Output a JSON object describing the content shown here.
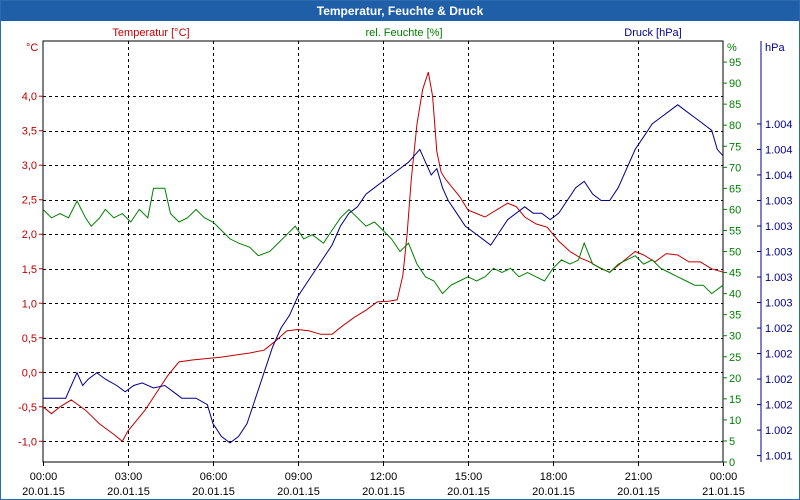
{
  "window": {
    "title": "Temperatur, Feuchte & Druck"
  },
  "colors": {
    "temp": "#c00000",
    "hum": "#008000",
    "pres": "#00008b",
    "grid": "#000000",
    "axis": "#000000"
  },
  "chart_data": {
    "type": "line",
    "title": "Temperatur, Feuchte & Druck",
    "xlabel": "",
    "x_ticks": [
      {
        "time": "00:00",
        "date": "20.01.15"
      },
      {
        "time": "03:00",
        "date": "20.01.15"
      },
      {
        "time": "06:00",
        "date": "20.01.15"
      },
      {
        "time": "09:00",
        "date": "20.01.15"
      },
      {
        "time": "12:00",
        "date": "20.01.15"
      },
      {
        "time": "15:00",
        "date": "20.01.15"
      },
      {
        "time": "18:00",
        "date": "20.01.15"
      },
      {
        "time": "21:00",
        "date": "20.01.15"
      },
      {
        "time": "00:00",
        "date": "21.01.15"
      }
    ],
    "xlim_hours": [
      0,
      24
    ],
    "axes": {
      "temp": {
        "label": "Temperatur [°C]",
        "unit": "°C",
        "ylim": [
          -1.3,
          4.8
        ],
        "ticks": [
          "-1,0",
          "-0,5",
          "0,0",
          "0,5",
          "1,0",
          "1,5",
          "2,0",
          "2,5",
          "3,0",
          "3,5",
          "4,0"
        ],
        "tick_values": [
          -1.0,
          -0.5,
          0.0,
          0.5,
          1.0,
          1.5,
          2.0,
          2.5,
          3.0,
          3.5,
          4.0
        ]
      },
      "hum": {
        "label": "rel. Feuchte [%]",
        "unit": "%",
        "ylim": [
          0,
          100
        ],
        "ticks": [
          "0",
          "5",
          "10",
          "15",
          "20",
          "25",
          "30",
          "35",
          "40",
          "45",
          "50",
          "55",
          "60",
          "65",
          "70",
          "75",
          "80",
          "85",
          "90",
          "95"
        ],
        "tick_values": [
          0,
          5,
          10,
          15,
          20,
          25,
          30,
          35,
          40,
          45,
          50,
          55,
          60,
          65,
          70,
          75,
          80,
          85,
          90,
          95
        ]
      },
      "pres": {
        "label": "Druck [hPa]",
        "unit": "hPa",
        "ylim": [
          1001.0,
          1004.3
        ],
        "ticks": [
          "1.001",
          "1.002",
          "1.002",
          "1.002",
          "1.002",
          "1.002",
          "1.003",
          "1.003",
          "1.003",
          "1.003",
          "1.003",
          "1.004",
          "1.004",
          "1.004"
        ],
        "tick_values": [
          1001.05,
          1001.25,
          1001.45,
          1001.65,
          1001.85,
          1002.05,
          1002.25,
          1002.45,
          1002.65,
          1002.85,
          1003.05,
          1003.25,
          1003.45,
          1003.65
        ]
      }
    },
    "series": [
      {
        "name": "Temperatur [°C]",
        "axis": "temp",
        "points": [
          [
            0,
            -0.5
          ],
          [
            0.3,
            -0.6
          ],
          [
            0.6,
            -0.5
          ],
          [
            1.0,
            -0.4
          ],
          [
            1.5,
            -0.55
          ],
          [
            2.0,
            -0.75
          ],
          [
            2.5,
            -0.9
          ],
          [
            2.8,
            -1.0
          ],
          [
            3.0,
            -0.85
          ],
          [
            3.3,
            -0.7
          ],
          [
            3.6,
            -0.55
          ],
          [
            4.0,
            -0.3
          ],
          [
            4.4,
            -0.05
          ],
          [
            4.8,
            0.15
          ],
          [
            5.3,
            0.18
          ],
          [
            5.8,
            0.2
          ],
          [
            6.3,
            0.22
          ],
          [
            6.8,
            0.25
          ],
          [
            7.3,
            0.28
          ],
          [
            7.8,
            0.32
          ],
          [
            8.2,
            0.45
          ],
          [
            8.6,
            0.6
          ],
          [
            9.0,
            0.62
          ],
          [
            9.4,
            0.6
          ],
          [
            9.8,
            0.55
          ],
          [
            10.2,
            0.55
          ],
          [
            10.6,
            0.68
          ],
          [
            11.0,
            0.8
          ],
          [
            11.4,
            0.9
          ],
          [
            11.8,
            1.02
          ],
          [
            12.2,
            1.03
          ],
          [
            12.5,
            1.05
          ],
          [
            12.7,
            1.4
          ],
          [
            12.85,
            2.0
          ],
          [
            13.0,
            2.8
          ],
          [
            13.2,
            3.6
          ],
          [
            13.4,
            4.1
          ],
          [
            13.6,
            4.35
          ],
          [
            13.75,
            4.0
          ],
          [
            13.9,
            3.2
          ],
          [
            14.05,
            2.9
          ],
          [
            14.2,
            2.8
          ],
          [
            14.4,
            2.7
          ],
          [
            14.7,
            2.55
          ],
          [
            15.0,
            2.35
          ],
          [
            15.3,
            2.3
          ],
          [
            15.6,
            2.25
          ],
          [
            16.0,
            2.35
          ],
          [
            16.4,
            2.45
          ],
          [
            16.7,
            2.4
          ],
          [
            17.0,
            2.25
          ],
          [
            17.4,
            2.15
          ],
          [
            17.8,
            2.1
          ],
          [
            18.2,
            1.9
          ],
          [
            18.6,
            1.75
          ],
          [
            19.0,
            1.65
          ],
          [
            19.3,
            1.6
          ],
          [
            19.7,
            1.5
          ],
          [
            20.0,
            1.45
          ],
          [
            20.3,
            1.55
          ],
          [
            20.6,
            1.65
          ],
          [
            20.9,
            1.75
          ],
          [
            21.2,
            1.7
          ],
          [
            21.6,
            1.6
          ],
          [
            22.0,
            1.72
          ],
          [
            22.4,
            1.7
          ],
          [
            22.8,
            1.6
          ],
          [
            23.2,
            1.6
          ],
          [
            23.6,
            1.5
          ],
          [
            24.0,
            1.45
          ]
        ]
      },
      {
        "name": "rel. Feuchte [%]",
        "axis": "hum",
        "points": [
          [
            0,
            60
          ],
          [
            0.3,
            58
          ],
          [
            0.6,
            59
          ],
          [
            0.9,
            58
          ],
          [
            1.2,
            62
          ],
          [
            1.5,
            58
          ],
          [
            1.7,
            56
          ],
          [
            2.0,
            58
          ],
          [
            2.2,
            60
          ],
          [
            2.5,
            58
          ],
          [
            2.8,
            59
          ],
          [
            3.1,
            57
          ],
          [
            3.4,
            60
          ],
          [
            3.7,
            58
          ],
          [
            3.9,
            65
          ],
          [
            4.3,
            65
          ],
          [
            4.5,
            59
          ],
          [
            4.8,
            57
          ],
          [
            5.1,
            58
          ],
          [
            5.4,
            60
          ],
          [
            5.7,
            58
          ],
          [
            6.0,
            57
          ],
          [
            6.3,
            55
          ],
          [
            6.6,
            53
          ],
          [
            6.9,
            52
          ],
          [
            7.3,
            51
          ],
          [
            7.6,
            49
          ],
          [
            8.0,
            50
          ],
          [
            8.3,
            52
          ],
          [
            8.6,
            54
          ],
          [
            8.9,
            56
          ],
          [
            9.2,
            53
          ],
          [
            9.5,
            54
          ],
          [
            9.9,
            52
          ],
          [
            10.2,
            55
          ],
          [
            10.5,
            58
          ],
          [
            10.8,
            60
          ],
          [
            11.1,
            58
          ],
          [
            11.4,
            56
          ],
          [
            11.7,
            57
          ],
          [
            12.0,
            55
          ],
          [
            12.3,
            53
          ],
          [
            12.6,
            50
          ],
          [
            12.9,
            52
          ],
          [
            13.2,
            47
          ],
          [
            13.5,
            44
          ],
          [
            13.8,
            43
          ],
          [
            14.1,
            40
          ],
          [
            14.4,
            42
          ],
          [
            14.7,
            43
          ],
          [
            15.0,
            44
          ],
          [
            15.3,
            43
          ],
          [
            15.6,
            44
          ],
          [
            15.9,
            46
          ],
          [
            16.2,
            45
          ],
          [
            16.5,
            46
          ],
          [
            16.8,
            44
          ],
          [
            17.1,
            45
          ],
          [
            17.4,
            44
          ],
          [
            17.7,
            43
          ],
          [
            18.0,
            46
          ],
          [
            18.3,
            48
          ],
          [
            18.6,
            47
          ],
          [
            18.9,
            48
          ],
          [
            19.1,
            52
          ],
          [
            19.4,
            47
          ],
          [
            19.7,
            46
          ],
          [
            20.0,
            45
          ],
          [
            20.3,
            47
          ],
          [
            20.6,
            48
          ],
          [
            20.9,
            49
          ],
          [
            21.2,
            47
          ],
          [
            21.5,
            48
          ],
          [
            21.8,
            46
          ],
          [
            22.1,
            45
          ],
          [
            22.4,
            44
          ],
          [
            22.7,
            43
          ],
          [
            23.0,
            42
          ],
          [
            23.3,
            42
          ],
          [
            23.6,
            40
          ],
          [
            24.0,
            42
          ]
        ]
      },
      {
        "name": "Druck [hPa]",
        "axis": "pres",
        "points": [
          [
            0,
            1001.5
          ],
          [
            0.5,
            1001.5
          ],
          [
            0.8,
            1001.5
          ],
          [
            1.0,
            1001.6
          ],
          [
            1.2,
            1001.7
          ],
          [
            1.4,
            1001.6
          ],
          [
            1.6,
            1001.65
          ],
          [
            1.9,
            1001.7
          ],
          [
            2.2,
            1001.65
          ],
          [
            2.6,
            1001.6
          ],
          [
            2.9,
            1001.55
          ],
          [
            3.2,
            1001.6
          ],
          [
            3.5,
            1001.62
          ],
          [
            3.9,
            1001.58
          ],
          [
            4.3,
            1001.6
          ],
          [
            4.6,
            1001.55
          ],
          [
            4.9,
            1001.5
          ],
          [
            5.4,
            1001.5
          ],
          [
            5.8,
            1001.45
          ],
          [
            6.0,
            1001.3
          ],
          [
            6.3,
            1001.2
          ],
          [
            6.6,
            1001.15
          ],
          [
            6.9,
            1001.2
          ],
          [
            7.2,
            1001.3
          ],
          [
            7.5,
            1001.5
          ],
          [
            7.8,
            1001.7
          ],
          [
            8.1,
            1001.9
          ],
          [
            8.4,
            1002.05
          ],
          [
            8.7,
            1002.15
          ],
          [
            9.0,
            1002.3
          ],
          [
            9.3,
            1002.4
          ],
          [
            9.6,
            1002.5
          ],
          [
            9.9,
            1002.6
          ],
          [
            10.2,
            1002.7
          ],
          [
            10.5,
            1002.85
          ],
          [
            10.8,
            1002.95
          ],
          [
            11.1,
            1003.0
          ],
          [
            11.4,
            1003.1
          ],
          [
            11.7,
            1003.15
          ],
          [
            12.0,
            1003.2
          ],
          [
            12.3,
            1003.25
          ],
          [
            12.6,
            1003.3
          ],
          [
            12.9,
            1003.35
          ],
          [
            13.1,
            1003.4
          ],
          [
            13.3,
            1003.45
          ],
          [
            13.5,
            1003.35
          ],
          [
            13.7,
            1003.25
          ],
          [
            13.9,
            1003.3
          ],
          [
            14.1,
            1003.15
          ],
          [
            14.3,
            1003.05
          ],
          [
            14.6,
            1002.95
          ],
          [
            14.9,
            1002.85
          ],
          [
            15.2,
            1002.8
          ],
          [
            15.5,
            1002.75
          ],
          [
            15.8,
            1002.7
          ],
          [
            16.1,
            1002.8
          ],
          [
            16.4,
            1002.9
          ],
          [
            16.7,
            1002.95
          ],
          [
            17.0,
            1003.0
          ],
          [
            17.3,
            1002.95
          ],
          [
            17.6,
            1002.95
          ],
          [
            17.9,
            1002.9
          ],
          [
            18.2,
            1002.95
          ],
          [
            18.5,
            1003.05
          ],
          [
            18.8,
            1003.15
          ],
          [
            19.1,
            1003.2
          ],
          [
            19.4,
            1003.1
          ],
          [
            19.7,
            1003.05
          ],
          [
            20.0,
            1003.05
          ],
          [
            20.3,
            1003.15
          ],
          [
            20.6,
            1003.3
          ],
          [
            20.9,
            1003.45
          ],
          [
            21.2,
            1003.55
          ],
          [
            21.5,
            1003.65
          ],
          [
            21.8,
            1003.7
          ],
          [
            22.1,
            1003.75
          ],
          [
            22.4,
            1003.8
          ],
          [
            22.7,
            1003.75
          ],
          [
            23.0,
            1003.7
          ],
          [
            23.3,
            1003.65
          ],
          [
            23.6,
            1003.6
          ],
          [
            23.8,
            1003.45
          ],
          [
            24.0,
            1003.4
          ]
        ]
      }
    ]
  }
}
